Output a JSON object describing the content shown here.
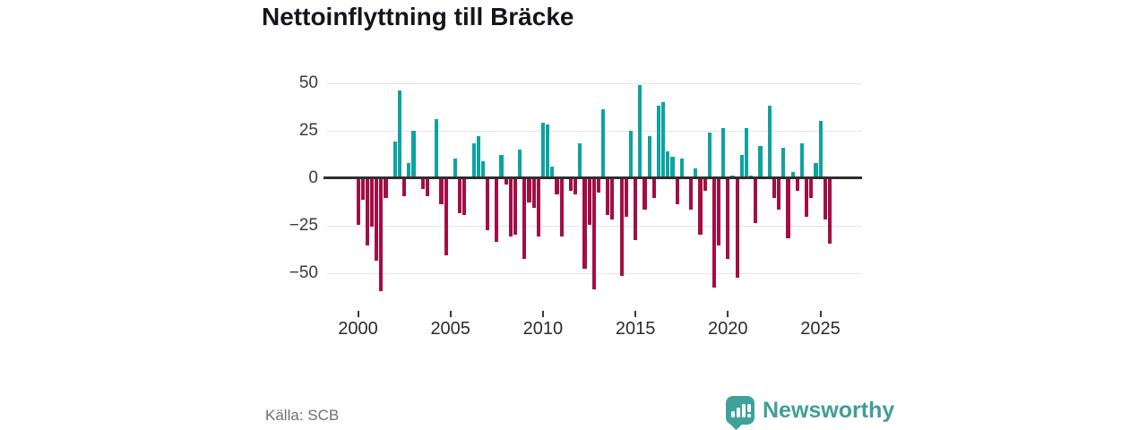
{
  "title": "Nettoinflyttning till Bräcke",
  "source": "Källa: SCB",
  "brand": {
    "name": "Newsworthy",
    "color": "#3f9f97"
  },
  "colors": {
    "positive": "#0da3a0",
    "negative": "#a50d45",
    "zero_axis": "#2e2e2e",
    "gridline": "#e4e4e4"
  },
  "chart_data": {
    "type": "bar",
    "title": "Nettoinflyttning till Bräcke",
    "xlabel": "",
    "ylabel": "",
    "frequency": "quarterly",
    "x_start": "2000-Q1",
    "x_end": "2025-Q4",
    "x_tick_years": [
      2000,
      2005,
      2010,
      2015,
      2020,
      2025
    ],
    "y_ticks": [
      50,
      25,
      0,
      -25,
      -50
    ],
    "ylim": [
      -62,
      55
    ],
    "grid": true,
    "legend": "none",
    "values": [
      -24,
      -11,
      -35,
      -25,
      -43,
      -59,
      -10,
      0,
      19,
      46,
      -9,
      8,
      25,
      0,
      -5,
      -9,
      0,
      31,
      -13,
      -40,
      0,
      10,
      -18,
      -19,
      0,
      18,
      22,
      9,
      -27,
      0,
      -33,
      12,
      -3,
      -30,
      -29,
      15,
      -42,
      -12,
      -15,
      -30,
      29,
      28,
      6,
      -8,
      -30,
      0,
      -6,
      -8,
      18,
      -47,
      -24,
      -58,
      -7,
      36,
      -19,
      -21,
      0,
      -51,
      -20,
      25,
      -32,
      49,
      -16,
      22,
      -10,
      38,
      40,
      14,
      11,
      -13,
      10,
      0,
      -16,
      5,
      -29,
      -6,
      24,
      -57,
      -35,
      26,
      -42,
      1,
      -52,
      12,
      26,
      1,
      -23,
      17,
      0,
      38,
      -10,
      -16,
      16,
      -31,
      3,
      -6,
      18,
      -20,
      -10,
      8,
      30,
      -21,
      -34,
      0
    ]
  }
}
